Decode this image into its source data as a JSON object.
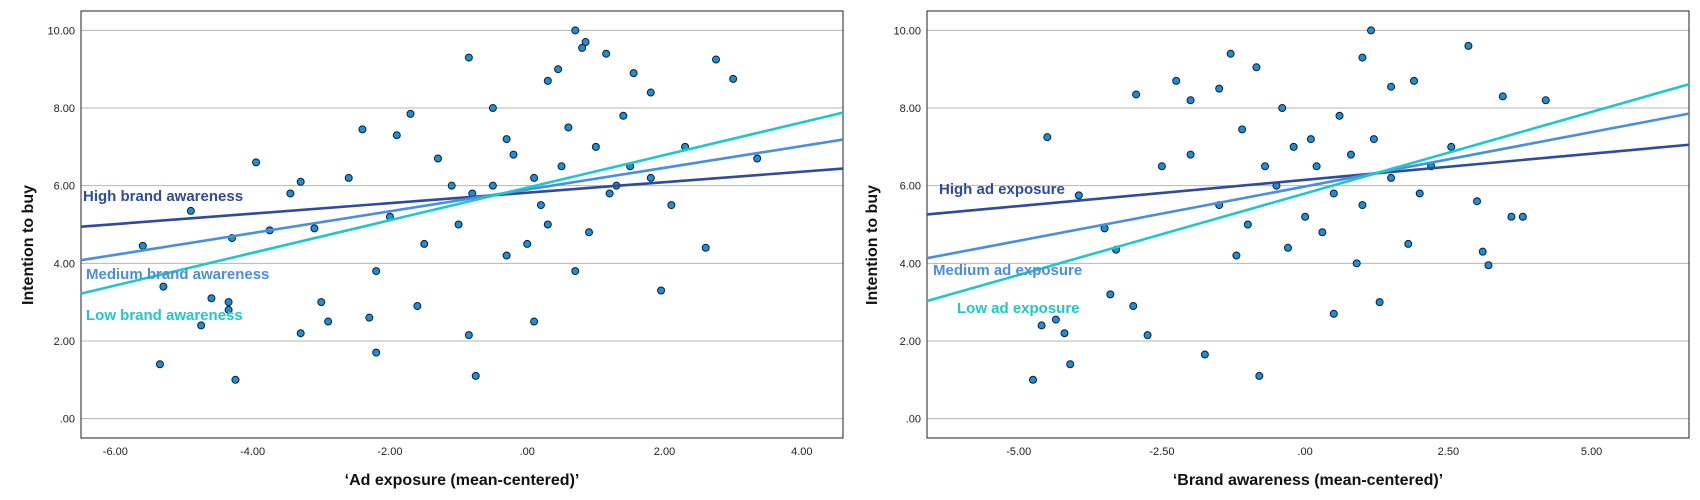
{
  "chart_data": [
    {
      "type": "scatter",
      "title": "",
      "xlabel": "‘Ad exposure (mean-centered)’",
      "ylabel": "Intention to buy",
      "xlim": [
        -6.5,
        4.6
      ],
      "ylim": [
        -0.5,
        10.5
      ],
      "xticks": [
        -6,
        -4,
        -2,
        0,
        2,
        4
      ],
      "xtick_labels": [
        "-6.00",
        "-4.00",
        "-2.00",
        ".00",
        "2.00",
        "4.00"
      ],
      "yticks": [
        0,
        2,
        4,
        6,
        8,
        10
      ],
      "ytick_labels": [
        ".00",
        "2.00",
        "4.00",
        "6.00",
        "8.00",
        "10.00"
      ],
      "grid": "horizontal",
      "points": [
        [
          -5.6,
          4.45
        ],
        [
          -5.35,
          1.4
        ],
        [
          -5.3,
          3.4
        ],
        [
          -4.9,
          5.35
        ],
        [
          -4.75,
          2.4
        ],
        [
          -4.6,
          3.1
        ],
        [
          -4.3,
          4.65
        ],
        [
          -4.25,
          1.0
        ],
        [
          -4.35,
          3.0
        ],
        [
          -4.35,
          2.8
        ],
        [
          -3.95,
          6.6
        ],
        [
          -3.75,
          4.85
        ],
        [
          -3.45,
          5.8
        ],
        [
          -3.3,
          6.1
        ],
        [
          -3.3,
          2.2
        ],
        [
          -3.1,
          4.9
        ],
        [
          -3.0,
          3.0
        ],
        [
          -2.9,
          2.5
        ],
        [
          -2.6,
          6.2
        ],
        [
          -2.4,
          7.45
        ],
        [
          -2.2,
          1.7
        ],
        [
          -2.3,
          2.6
        ],
        [
          -2.2,
          3.8
        ],
        [
          -1.9,
          7.3
        ],
        [
          -1.7,
          7.85
        ],
        [
          -1.6,
          2.9
        ],
        [
          -1.3,
          6.7
        ],
        [
          -1.1,
          6.0
        ],
        [
          -0.85,
          9.3
        ],
        [
          -0.85,
          2.15
        ],
        [
          -0.75,
          1.1
        ],
        [
          -0.5,
          8.0
        ],
        [
          -0.3,
          4.2
        ],
        [
          0.1,
          2.5
        ],
        [
          0.3,
          8.7
        ],
        [
          0.45,
          9.0
        ],
        [
          0.7,
          10.0
        ],
        [
          0.85,
          9.7
        ],
        [
          1.15,
          9.4
        ],
        [
          1.3,
          6.0
        ],
        [
          1.55,
          8.9
        ],
        [
          1.8,
          8.4
        ],
        [
          1.95,
          3.3
        ],
        [
          2.3,
          7.0
        ],
        [
          2.6,
          4.4
        ],
        [
          2.75,
          9.25
        ],
        [
          3.0,
          8.75
        ],
        [
          3.35,
          6.7
        ],
        [
          0.8,
          9.55
        ],
        [
          0.5,
          6.5
        ],
        [
          0.2,
          5.5
        ],
        [
          -0.5,
          6.0
        ],
        [
          -1.0,
          5.0
        ],
        [
          1.0,
          7.0
        ],
        [
          1.5,
          6.5
        ],
        [
          0.0,
          4.5
        ],
        [
          0.6,
          7.5
        ],
        [
          -0.2,
          6.8
        ],
        [
          1.2,
          5.8
        ],
        [
          0.9,
          4.8
        ],
        [
          -1.5,
          4.5
        ],
        [
          -0.8,
          5.8
        ],
        [
          0.3,
          5.0
        ],
        [
          1.8,
          6.2
        ],
        [
          -0.3,
          7.2
        ],
        [
          0.7,
          3.8
        ],
        [
          -2.0,
          5.2
        ],
        [
          2.1,
          5.5
        ],
        [
          1.4,
          7.8
        ],
        [
          0.1,
          6.2
        ]
      ],
      "series": [
        {
          "name": "High brand awareness",
          "intercept": 5.82,
          "slope": 0.135,
          "color": "#2f4b9b"
        },
        {
          "name": "Medium brand awareness",
          "intercept": 5.9,
          "slope": 0.28,
          "color": "#4a8ee0"
        },
        {
          "name": "Low brand awareness",
          "intercept": 5.95,
          "slope": 0.42,
          "color": "#1ec8c8"
        }
      ]
    },
    {
      "type": "scatter",
      "title": "",
      "xlabel": "‘Brand awareness (mean-centered)’",
      "ylabel": "Intention to buy",
      "xlim": [
        -6.6,
        6.7
      ],
      "ylim": [
        -0.5,
        10.5
      ],
      "xticks": [
        -5,
        -2.5,
        0,
        2.5,
        5
      ],
      "xtick_labels": [
        "-5.00",
        "-2.50",
        ".00",
        "2.50",
        "5.00"
      ],
      "yticks": [
        0,
        2,
        4,
        6,
        8,
        10
      ],
      "ytick_labels": [
        ".00",
        "2.00",
        "4.00",
        "6.00",
        "8.00",
        "10.00"
      ],
      "grid": "horizontal",
      "points": [
        [
          -4.75,
          1.0
        ],
        [
          -4.6,
          2.4
        ],
        [
          -4.5,
          7.25
        ],
        [
          -4.35,
          2.55
        ],
        [
          -4.2,
          2.2
        ],
        [
          -4.1,
          1.4
        ],
        [
          -3.95,
          5.75
        ],
        [
          -3.5,
          4.9
        ],
        [
          -3.4,
          3.2
        ],
        [
          -3.3,
          4.35
        ],
        [
          -3.0,
          2.9
        ],
        [
          -2.95,
          8.35
        ],
        [
          -2.75,
          2.15
        ],
        [
          -2.5,
          6.5
        ],
        [
          -2.25,
          8.7
        ],
        [
          -2.0,
          8.2
        ],
        [
          -1.75,
          1.65
        ],
        [
          -1.5,
          8.5
        ],
        [
          -1.3,
          9.4
        ],
        [
          -1.1,
          7.45
        ],
        [
          -0.85,
          9.05
        ],
        [
          -0.8,
          1.1
        ],
        [
          -0.3,
          4.4
        ],
        [
          0.1,
          7.2
        ],
        [
          0.5,
          2.7
        ],
        [
          1.0,
          9.3
        ],
        [
          1.15,
          10.0
        ],
        [
          1.3,
          3.0
        ],
        [
          1.5,
          8.55
        ],
        [
          1.9,
          8.7
        ],
        [
          2.55,
          7.0
        ],
        [
          2.85,
          9.6
        ],
        [
          3.0,
          5.6
        ],
        [
          3.1,
          4.3
        ],
        [
          3.2,
          3.95
        ],
        [
          3.45,
          8.3
        ],
        [
          3.6,
          5.2
        ],
        [
          3.8,
          5.2
        ],
        [
          4.2,
          8.2
        ],
        [
          0.2,
          6.5
        ],
        [
          0.6,
          7.8
        ],
        [
          -0.5,
          6.0
        ],
        [
          1.0,
          5.5
        ],
        [
          -1.0,
          5.0
        ],
        [
          0.3,
          4.8
        ],
        [
          1.5,
          6.2
        ],
        [
          -0.2,
          7.0
        ],
        [
          0.8,
          6.8
        ],
        [
          2.0,
          5.8
        ],
        [
          -1.5,
          5.5
        ],
        [
          0.0,
          5.2
        ],
        [
          1.2,
          7.2
        ],
        [
          -0.7,
          6.5
        ],
        [
          2.2,
          6.5
        ],
        [
          0.5,
          5.8
        ],
        [
          -2.0,
          6.8
        ],
        [
          1.8,
          4.5
        ],
        [
          -1.2,
          4.2
        ],
        [
          0.9,
          4.0
        ],
        [
          -0.4,
          8.0
        ]
      ],
      "series": [
        {
          "name": "High ad exposure",
          "intercept": 6.15,
          "slope": 0.135,
          "color": "#2f4b9b"
        },
        {
          "name": "Medium ad exposure",
          "intercept": 5.98,
          "slope": 0.28,
          "color": "#4a8ee0"
        },
        {
          "name": "Low ad exposure",
          "intercept": 5.8,
          "slope": 0.42,
          "color": "#1ec8c8"
        }
      ]
    }
  ]
}
